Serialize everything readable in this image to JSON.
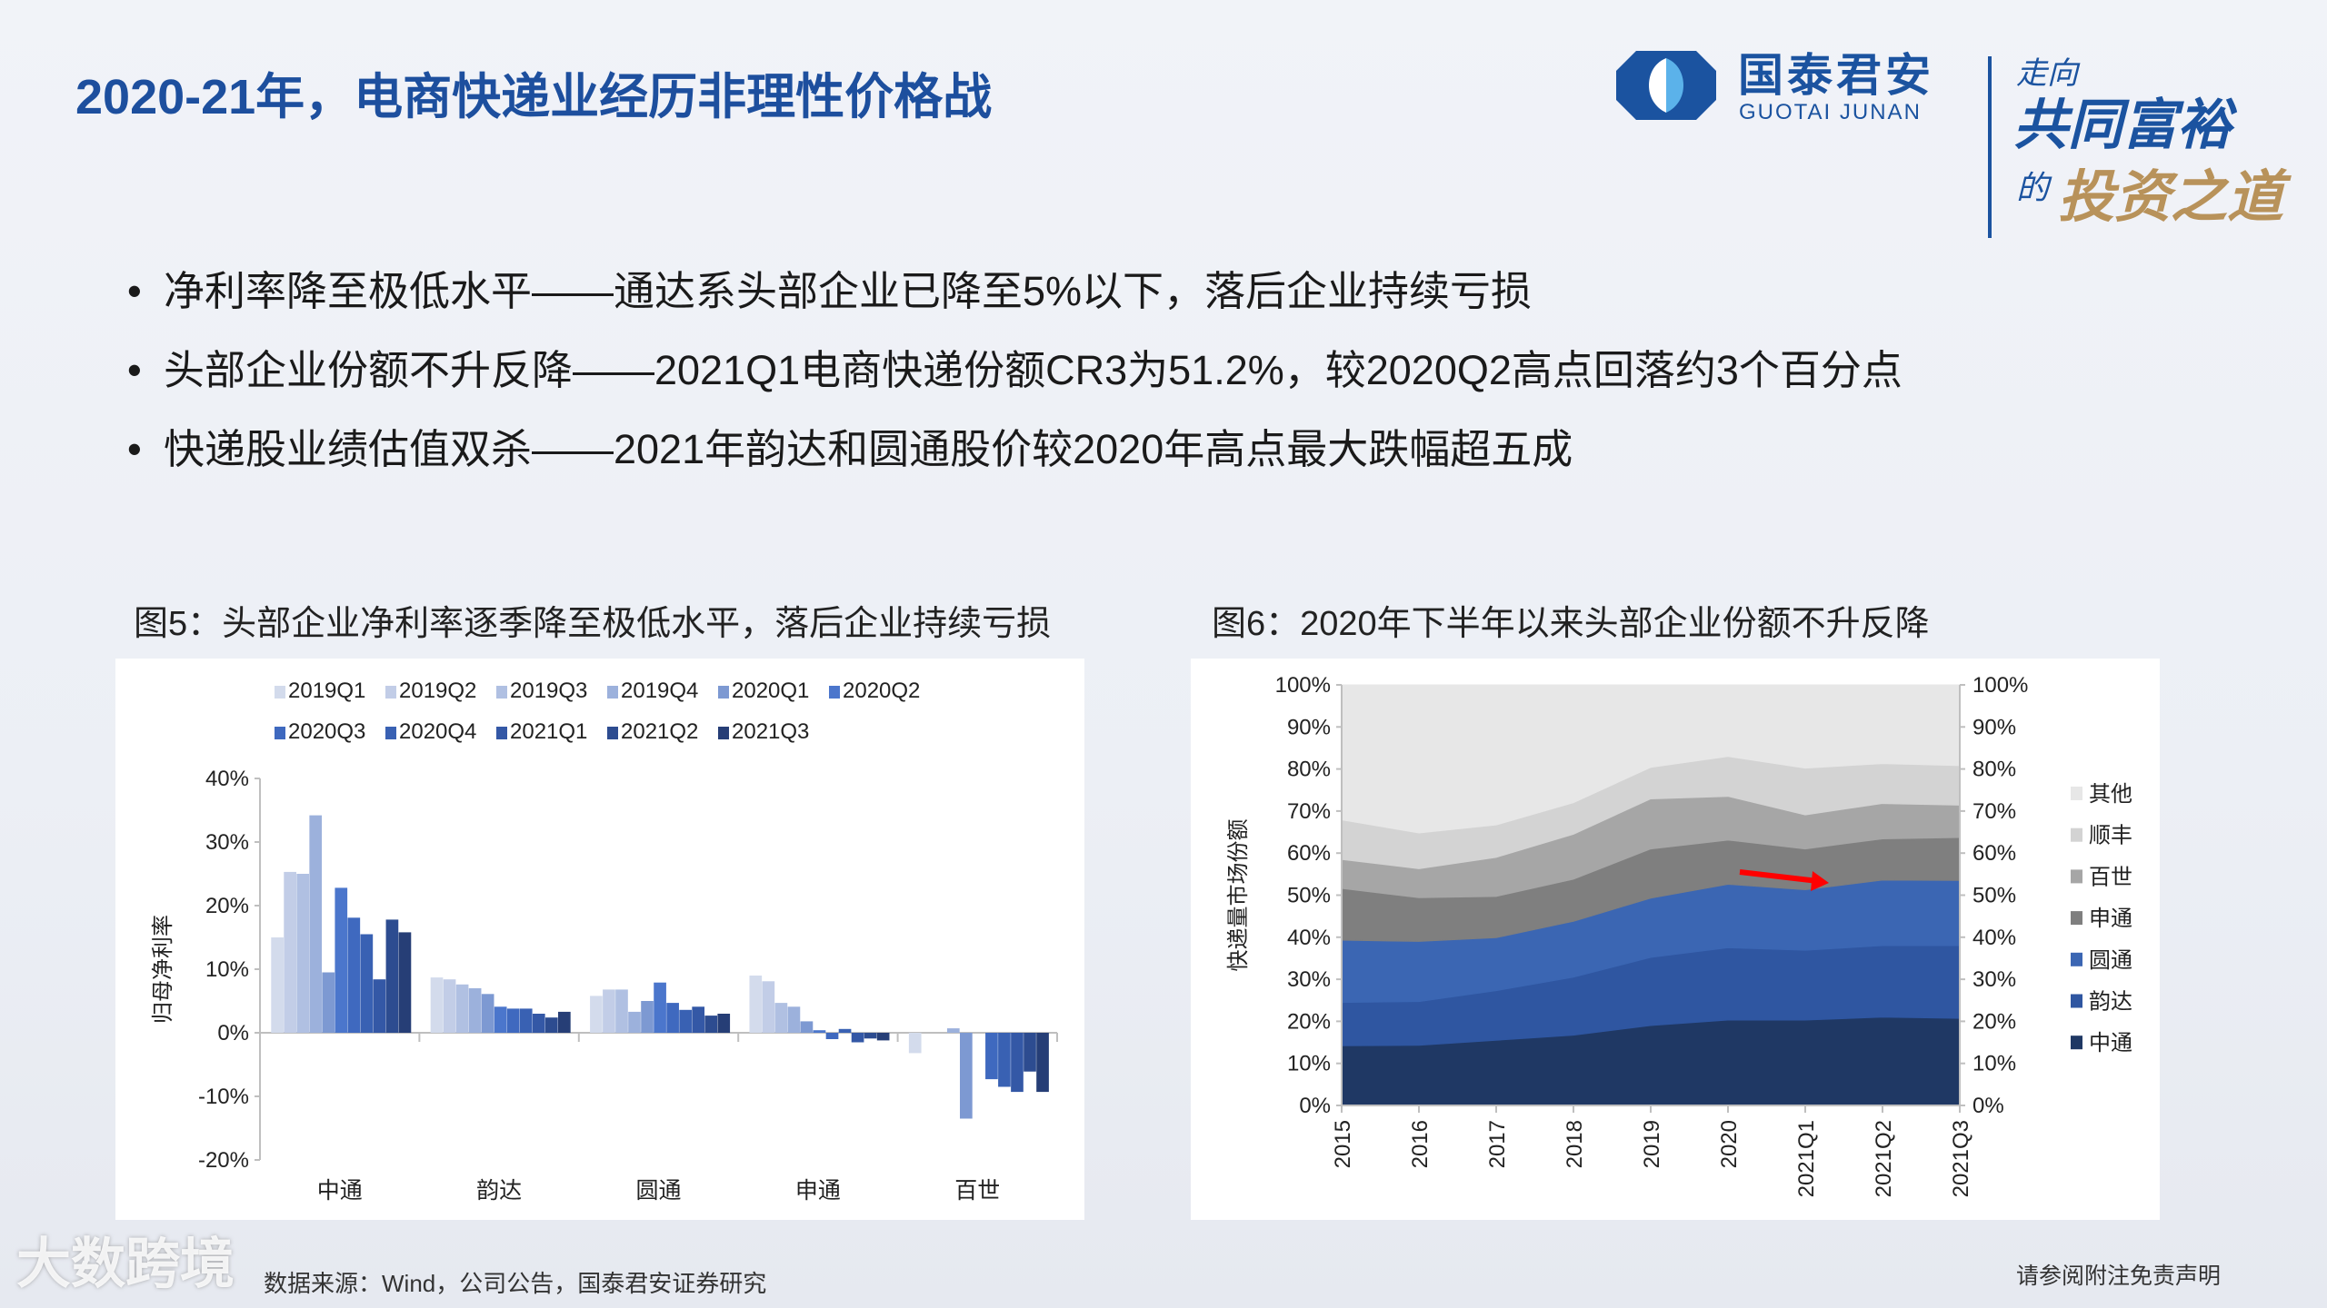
{
  "header": {
    "title": "2020-21年，电商快递业经历非理性价格战",
    "logo": {
      "name_cn": "国泰君安",
      "name_en": "GUOTAI JUNAN",
      "brand_color": "#1b53a0",
      "slogan_line1": "走向",
      "slogan_line2": "共同富裕",
      "slogan_line3": "的",
      "slogan_line4": "投资之道"
    }
  },
  "bullets": [
    "净利率降至极低水平——通达系头部企业已降至5%以下，落后企业持续亏损",
    "头部企业份额不升反降——2021Q1电商快递份额CR3为51.2%，较2020Q2高点回落约3个百分点",
    "快递股业绩估值双杀——2021年韵达和圆通股价较2020年高点最大跌幅超五成"
  ],
  "bullet_symbol": "•",
  "figure5": {
    "caption": "图5：头部企业净利率逐季降至极低水平，落后企业持续亏损"
  },
  "figure6": {
    "caption": "图6：2020年下半年以来头部企业份额不升反降"
  },
  "footer": {
    "source": "数据来源：Wind，公司公告，国泰君安证券研究",
    "disclaimer": "请参阅附注免责声明",
    "watermark": "大数跨境"
  },
  "chart_data": [
    {
      "type": "bar",
      "ylabel": "归母净利率",
      "ylim": [
        -0.2,
        0.4
      ],
      "yticks": [
        "40%",
        "30%",
        "20%",
        "10%",
        "0%",
        "-10%",
        "-20%"
      ],
      "ytick_values": [
        0.4,
        0.3,
        0.2,
        0.1,
        0,
        -0.1,
        -0.2
      ],
      "legend_position": "top",
      "categories": [
        "中通",
        "韵达",
        "圆通",
        "申通",
        "百世"
      ],
      "series": [
        {
          "name": "2019Q1",
          "color": "#d3dbec",
          "values": [
            0.15,
            0.087,
            0.058,
            0.09,
            -0.032
          ]
        },
        {
          "name": "2019Q2",
          "color": "#c2cde7",
          "values": [
            0.253,
            0.084,
            0.068,
            0.081,
            0
          ]
        },
        {
          "name": "2019Q3",
          "color": "#b0c0e2",
          "values": [
            0.25,
            0.076,
            0.068,
            0.047,
            0
          ]
        },
        {
          "name": "2019Q4",
          "color": "#9cb1dc",
          "values": [
            0.342,
            0.07,
            0.033,
            0.041,
            0.007
          ]
        },
        {
          "name": "2020Q1",
          "color": "#7d99d2",
          "values": [
            0.095,
            0.061,
            0.05,
            0.018,
            -0.135
          ]
        },
        {
          "name": "2020Q2",
          "color": "#4b76cc",
          "values": [
            0.228,
            0.041,
            0.079,
            0.004,
            0
          ]
        },
        {
          "name": "2020Q3",
          "color": "#3f69bf",
          "values": [
            0.181,
            0.038,
            0.047,
            -0.01,
            -0.073
          ]
        },
        {
          "name": "2020Q4",
          "color": "#3961b3",
          "values": [
            0.155,
            0.038,
            0.036,
            0.006,
            -0.085
          ]
        },
        {
          "name": "2021Q1",
          "color": "#3458a6",
          "values": [
            0.084,
            0.03,
            0.041,
            -0.015,
            -0.093
          ]
        },
        {
          "name": "2021Q2",
          "color": "#2d4c90",
          "values": [
            0.178,
            0.024,
            0.027,
            -0.009,
            -0.061
          ]
        },
        {
          "name": "2021Q3",
          "color": "#263e76",
          "values": [
            0.158,
            0.033,
            0.03,
            -0.012,
            -0.093
          ]
        }
      ]
    },
    {
      "type": "area",
      "stacked": true,
      "ylabel": "快递量市场份额",
      "ylim": [
        0,
        1
      ],
      "yticks": [
        "100%",
        "90%",
        "80%",
        "70%",
        "60%",
        "50%",
        "40%",
        "30%",
        "20%",
        "10%",
        "0%"
      ],
      "ytick_values": [
        1,
        0.9,
        0.8,
        0.7,
        0.6,
        0.5,
        0.4,
        0.3,
        0.2,
        0.1,
        0
      ],
      "legend_position": "right",
      "x": [
        "2015",
        "2016",
        "2017",
        "2018",
        "2019",
        "2020",
        "2021Q1",
        "2021Q2",
        "2021Q3"
      ],
      "series": [
        {
          "name": "中通",
          "color": "#1f3864",
          "values": [
            0.142,
            0.143,
            0.155,
            0.167,
            0.19,
            0.203,
            0.203,
            0.21,
            0.207
          ]
        },
        {
          "name": "韵达",
          "color": "#2f56a1",
          "values": [
            0.103,
            0.104,
            0.118,
            0.138,
            0.162,
            0.172,
            0.166,
            0.17,
            0.173
          ]
        },
        {
          "name": "圆通",
          "color": "#3b66b3",
          "values": [
            0.148,
            0.143,
            0.126,
            0.133,
            0.141,
            0.151,
            0.144,
            0.156,
            0.155
          ]
        },
        {
          "name": "申通",
          "color": "#7f7f7f",
          "values": [
            0.123,
            0.104,
            0.098,
            0.1,
            0.117,
            0.105,
            0.097,
            0.098,
            0.102
          ]
        },
        {
          "name": "百世",
          "color": "#a6a6a6",
          "values": [
            0.069,
            0.069,
            0.093,
            0.107,
            0.119,
            0.104,
            0.081,
            0.084,
            0.077
          ]
        },
        {
          "name": "顺丰",
          "color": "#d3d3d3",
          "values": [
            0.094,
            0.085,
            0.077,
            0.075,
            0.075,
            0.095,
            0.111,
            0.095,
            0.094
          ]
        },
        {
          "name": "其他",
          "color": "#e7e7e7",
          "values": [
            0.321,
            0.352,
            0.333,
            0.28,
            0.196,
            0.17,
            0.198,
            0.187,
            0.192
          ]
        }
      ],
      "annotation": {
        "type": "arrow",
        "color": "#ff0000",
        "from_x": "2020",
        "to_x": "2021Q1",
        "meaning": "圆通/申通 boundary decline"
      }
    }
  ]
}
